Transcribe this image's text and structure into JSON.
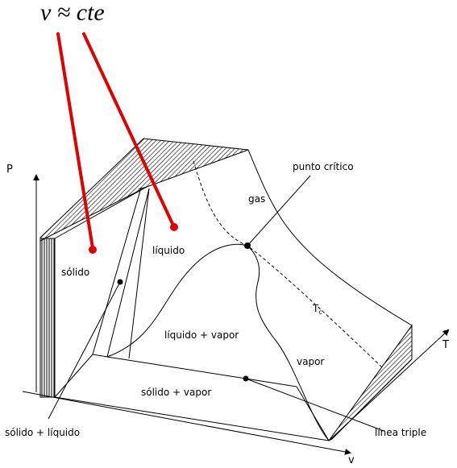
{
  "annotation": {
    "text": "v ≈ cte",
    "color": "#e00000"
  },
  "axes": {
    "p": "P",
    "t": "T",
    "v": "v"
  },
  "regions": {
    "solido": "sólido",
    "liquido": "líquido",
    "gas": "gas",
    "vapor": "vapor",
    "liquido_vapor": "líquido + vapor",
    "solido_vapor": "sólido + vapor"
  },
  "callouts": {
    "punto_critico": "punto crítico",
    "linea_triple": "línea triple",
    "solido_liquido": "sólido + líquido"
  },
  "isotherm": {
    "symbol": "T",
    "subscript": "c"
  }
}
